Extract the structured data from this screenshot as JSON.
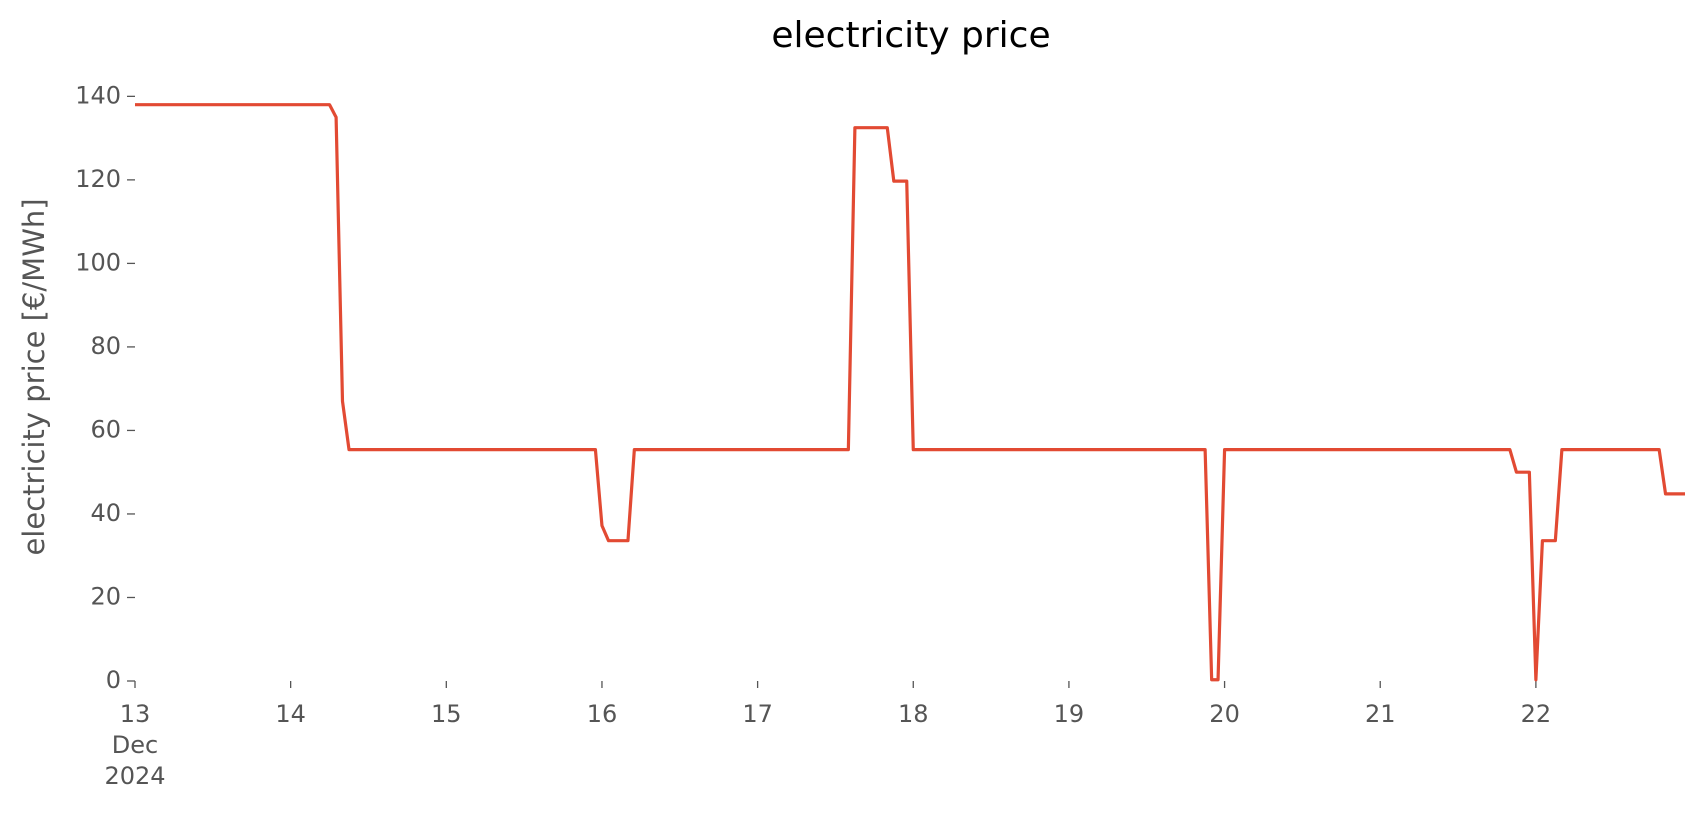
{
  "chart_data": {
    "type": "line",
    "title": "electricity price",
    "ylabel": "electricity price [€/MWh]",
    "xlim": [
      13,
      22.958
    ],
    "ylim": [
      0,
      142
    ],
    "xticks": [
      {
        "value": 13,
        "label": "13\nDec\n2024"
      },
      14,
      15,
      16,
      17,
      18,
      19,
      20,
      21,
      22
    ],
    "yticks": [
      0,
      20,
      40,
      60,
      80,
      100,
      120,
      140
    ],
    "grid": false,
    "series": [
      {
        "name": "electricity price",
        "color": "#e24a33",
        "x": [
          13,
          14.25,
          14.292,
          14.333,
          14.375,
          15.958,
          16,
          16.042,
          16.167,
          16.208,
          17.583,
          17.625,
          17.833,
          17.875,
          17.958,
          18,
          19.875,
          19.917,
          19.958,
          20,
          21.833,
          21.875,
          21.958,
          22,
          22.042,
          22.125,
          22.167,
          22.792,
          22.833,
          22.958
        ],
        "values": [
          138,
          138,
          135,
          67,
          55.4,
          55.4,
          37.2,
          33.6,
          33.6,
          55.4,
          55.4,
          132.5,
          132.5,
          119.7,
          119.7,
          55.4,
          55.4,
          0.3,
          0.3,
          55.4,
          55.4,
          50,
          50,
          0.3,
          33.6,
          33.6,
          55.4,
          55.4,
          44.8,
          44.8
        ]
      }
    ]
  }
}
